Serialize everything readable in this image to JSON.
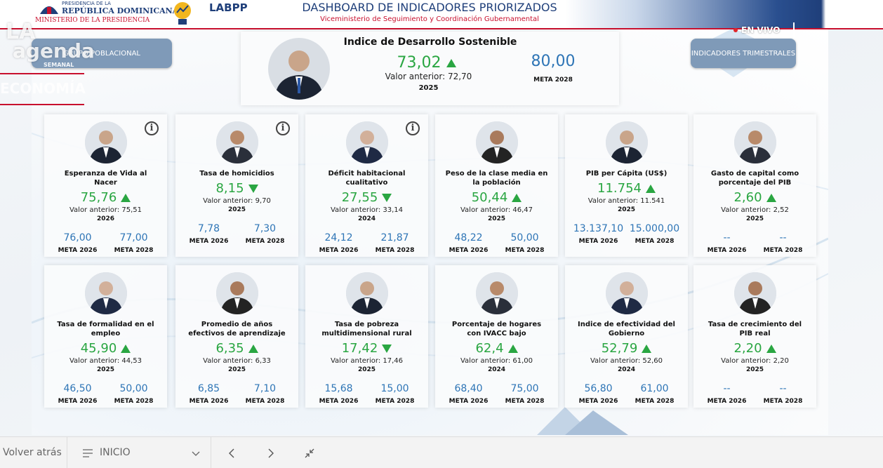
{
  "header": {
    "org_line1": "PRESIDENCIA DE LA",
    "org_line2": "REPÚBLICA DOMINICANA",
    "org_line3": "MINISTERIO DE LA PRESIDENCIA",
    "lab": "LABPP",
    "title": "DASHBOARD DE INDICADORES PRIORIZADOS",
    "subtitle": "Viceministerio de Seguimiento y Coordinación Gubernamental"
  },
  "overlay": {
    "show_top": "LA",
    "show_main": "agenda",
    "show_sub": "SEMANAL",
    "section": "ECONOMÍA",
    "live": "EN VIVO"
  },
  "buttons": {
    "left": "GRUPO POBLACIONAL",
    "right": "INDICADORES TRIMESTRALES"
  },
  "main": {
    "title": "Indice de Desarrollo Sostenible",
    "value": "73,02",
    "trend": "up",
    "previous": "Valor anterior: 72,70",
    "year": "2025",
    "goal_value": "80,00",
    "goal_label": "META 2028"
  },
  "cards": [
    {
      "title": "Esperanza de Vida al Nacer",
      "value": "75,76",
      "trend": "up",
      "previous": "Valor anterior: 75,51",
      "year": "2026",
      "meta1_value": "76,00",
      "meta1_label": "META 2026",
      "meta2_value": "77,00",
      "meta2_label": "META 2028",
      "info": true
    },
    {
      "title": "Tasa de homicidios",
      "value": "8,15",
      "trend": "down",
      "previous": "Valor anterior: 9,70",
      "year": "2025",
      "meta1_value": "7,78",
      "meta1_label": "META 2026",
      "meta2_value": "7,30",
      "meta2_label": "META 2028",
      "info": true
    },
    {
      "title": "Déficit habitacional cualitativo",
      "value": "27,55",
      "trend": "down",
      "previous": "Valor anterior: 33,14",
      "year": "2024",
      "meta1_value": "24,12",
      "meta1_label": "META 2026",
      "meta2_value": "21,87",
      "meta2_label": "META 2028",
      "info": true
    },
    {
      "title": "Peso de la clase media en la población",
      "value": "50,44",
      "trend": "up",
      "previous": "Valor anterior: 46,47",
      "year": "2025",
      "meta1_value": "48,22",
      "meta1_label": "META 2026",
      "meta2_value": "50,00",
      "meta2_label": "META 2028",
      "info": false
    },
    {
      "title": "PIB per Cápita (US$)",
      "value": "11.754",
      "trend": "up",
      "previous": "Valor anterior: 11.541",
      "year": "2025",
      "meta1_value": "13.137,10",
      "meta1_label": "META 2026",
      "meta2_value": "15.000,00",
      "meta2_label": "META 2028",
      "info": false
    },
    {
      "title": "Gasto de capital como porcentaje del PIB",
      "value": "2,60",
      "trend": "up",
      "previous": "Valor anterior: 2,52",
      "year": "2025",
      "meta1_value": "--",
      "meta1_label": "META 2026",
      "meta2_value": "--",
      "meta2_label": "META 2028",
      "info": false
    },
    {
      "title": "Tasa de formalidad en el empleo",
      "value": "45,90",
      "trend": "up",
      "previous": "Valor anterior: 44,53",
      "year": "2025",
      "meta1_value": "46,50",
      "meta1_label": "META 2026",
      "meta2_value": "50,00",
      "meta2_label": "META 2028",
      "info": false
    },
    {
      "title": "Promedio de años efectivos de aprendizaje",
      "value": "6,35",
      "trend": "up",
      "previous": "Valor anterior: 6,33",
      "year": "2025",
      "meta1_value": "6,85",
      "meta1_label": "META 2026",
      "meta2_value": "7,10",
      "meta2_label": "META 2028",
      "info": false
    },
    {
      "title": "Tasa de pobreza multidimensional rural",
      "value": "17,42",
      "trend": "down",
      "previous": "Valor anterior: 17,46",
      "year": "2025",
      "meta1_value": "15,68",
      "meta1_label": "META 2026",
      "meta2_value": "15,00",
      "meta2_label": "META 2028",
      "info": false
    },
    {
      "title": "Porcentaje de hogares con IVACC bajo",
      "value": "62,4",
      "trend": "up",
      "previous": "Valor anterior: 61,00",
      "year": "2024",
      "meta1_value": "68,40",
      "meta1_label": "META 2026",
      "meta2_value": "75,00",
      "meta2_label": "META 2028",
      "info": false
    },
    {
      "title": "Indice de efectividad del Gobierno",
      "value": "52,79",
      "trend": "up",
      "previous": "Valor anterior: 52,60",
      "year": "2024",
      "meta1_value": "56,80",
      "meta1_label": "META 2026",
      "meta2_value": "61,00",
      "meta2_label": "META 2028",
      "info": false
    },
    {
      "title": "Tasa de crecimiento del PIB real",
      "value": "2,20",
      "trend": "up",
      "previous": "Valor anterior: 2,20",
      "year": "2025",
      "meta1_value": "--",
      "meta1_label": "META 2026",
      "meta2_value": "--",
      "meta2_label": "META 2028",
      "info": false
    }
  ],
  "footer": {
    "back": "Volver atrás",
    "page": "INICIO"
  }
}
